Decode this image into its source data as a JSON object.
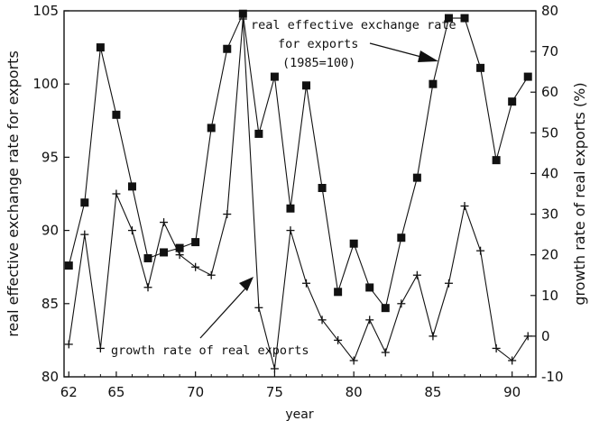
{
  "chart_data": {
    "type": "line",
    "xlabel": "year",
    "ylabel_left": "real effective exchange rate for exports",
    "ylabel_right": "growth rate of real exports (%)",
    "x": [
      62,
      63,
      64,
      65,
      66,
      67,
      68,
      69,
      70,
      71,
      72,
      73,
      74,
      75,
      76,
      77,
      78,
      79,
      80,
      81,
      82,
      83,
      84,
      85,
      86,
      87,
      88,
      89,
      90,
      91
    ],
    "x_ticks": [
      "62",
      "65",
      "70",
      "75",
      "80",
      "85",
      "90"
    ],
    "x_tick_values": [
      62,
      65,
      70,
      75,
      80,
      85,
      90
    ],
    "xlim": [
      61.7,
      91.5
    ],
    "ylim_left": [
      80,
      105
    ],
    "y_ticks_left": [
      "80",
      "85",
      "90",
      "95",
      "100",
      "105"
    ],
    "ylim_right": [
      -10,
      80
    ],
    "y_ticks_right": [
      "-10",
      "0",
      "10",
      "20",
      "30",
      "40",
      "50",
      "60",
      "70",
      "80"
    ],
    "series": [
      {
        "axis": "left",
        "marker": "square",
        "values": [
          87.6,
          91.9,
          102.5,
          97.9,
          93.0,
          88.1,
          88.5,
          88.8,
          89.2,
          97.0,
          102.4,
          104.8,
          96.6,
          100.5,
          91.5,
          99.9,
          92.9,
          85.8,
          89.1,
          86.1,
          84.7,
          89.5,
          93.6,
          100.0,
          104.5,
          104.5,
          101.1,
          94.8,
          98.8,
          100.5
        ]
      },
      {
        "axis": "right",
        "marker": "plus",
        "values": [
          -2,
          25,
          -3,
          35,
          26,
          12,
          28,
          20,
          17,
          15,
          30,
          78,
          7,
          -8,
          26,
          13,
          4,
          -1,
          -6,
          4,
          -4,
          8,
          15,
          0,
          13,
          32,
          21,
          -3,
          -6,
          0
        ]
      }
    ],
    "annotations": {
      "rate_line1": "real effective exchange rate",
      "rate_line2": "for exports",
      "rate_line3": "(1985=100)",
      "growth": "growth rate of real exports"
    }
  }
}
